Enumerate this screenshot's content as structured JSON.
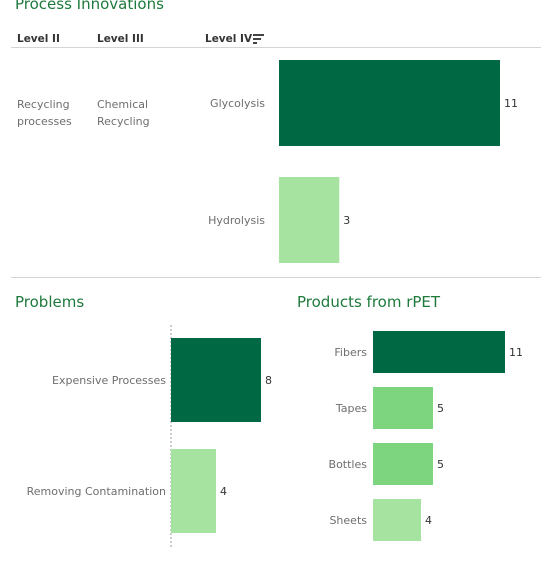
{
  "colors": {
    "title": "#1e7a3c",
    "dark": "#006944",
    "mid": "#7dd67f",
    "light": "#a6e3a0",
    "axis_label": "#6e6e6e",
    "value_label": "#333333"
  },
  "process_innovations": {
    "title": "Process Innovations",
    "headers": {
      "level2": "Level II",
      "level3": "Level III",
      "level4": "Level IV"
    },
    "sort_icon": "sort-descending-icon",
    "level2_value": "Recycling processes",
    "level3_value": "Chemical Recycling"
  },
  "problems": {
    "title": "Problems"
  },
  "products": {
    "title": "Products from rPET"
  },
  "chart_data": [
    {
      "type": "bar",
      "orientation": "horizontal",
      "title": "Process Innovations",
      "categories": [
        "Glycolysis",
        "Hydrolysis"
      ],
      "values": [
        11,
        3
      ],
      "colors": [
        "#006944",
        "#a6e3a0"
      ],
      "xlim": [
        0,
        11
      ],
      "grid": false
    },
    {
      "type": "bar",
      "orientation": "horizontal",
      "title": "Problems",
      "categories": [
        "Expensive Processes",
        "Removing Contamination"
      ],
      "values": [
        8,
        4
      ],
      "colors": [
        "#006944",
        "#a6e3a0"
      ],
      "xlim": [
        0,
        8
      ],
      "grid": false
    },
    {
      "type": "bar",
      "orientation": "horizontal",
      "title": "Products from rPET",
      "categories": [
        "Fibers",
        "Tapes",
        "Bottles",
        "Sheets"
      ],
      "values": [
        11,
        5,
        5,
        4
      ],
      "colors": [
        "#006944",
        "#7dd67f",
        "#7dd67f",
        "#a6e3a0"
      ],
      "xlim": [
        0,
        11
      ],
      "grid": false
    }
  ]
}
